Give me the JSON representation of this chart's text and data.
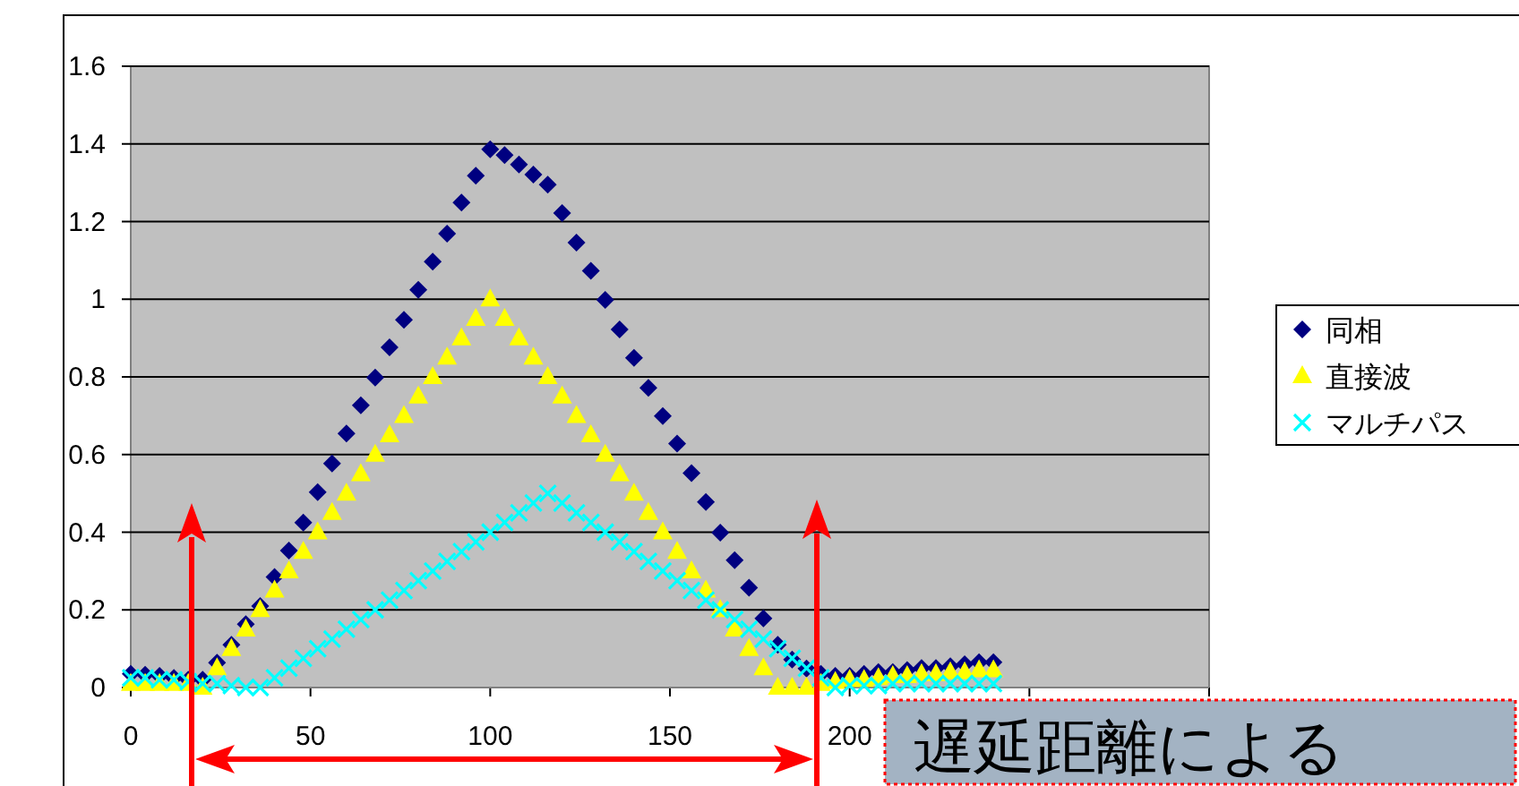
{
  "chart_data": {
    "type": "scatter",
    "x": [
      0,
      4,
      8,
      12,
      16,
      20,
      24,
      28,
      32,
      36,
      40,
      44,
      48,
      52,
      56,
      60,
      64,
      68,
      72,
      76,
      80,
      84,
      88,
      92,
      96,
      100,
      104,
      108,
      112,
      116,
      120,
      124,
      128,
      132,
      136,
      140,
      144,
      148,
      152,
      156,
      160,
      164,
      168,
      172,
      176,
      180,
      184,
      188,
      192,
      196,
      200,
      204,
      208,
      212,
      216,
      220,
      224,
      228,
      232,
      236,
      240
    ],
    "series": [
      {
        "name": "同相",
        "color": "#000080",
        "marker": "diamond",
        "values": [
          0.035,
          0.033,
          0.03,
          0.025,
          0.02,
          0.02,
          0.064,
          0.11,
          0.163,
          0.21,
          0.285,
          0.353,
          0.425,
          0.503,
          0.577,
          0.654,
          0.727,
          0.798,
          0.876,
          0.947,
          1.024,
          1.097,
          1.169,
          1.249,
          1.318,
          1.386,
          1.371,
          1.347,
          1.321,
          1.295,
          1.222,
          1.146,
          1.073,
          0.998,
          0.922,
          0.849,
          0.772,
          0.699,
          0.628,
          0.552,
          0.478,
          0.399,
          0.328,
          0.257,
          0.178,
          0.11,
          0.072,
          0.049,
          0.035,
          0.03,
          0.03,
          0.035,
          0.04,
          0.04,
          0.045,
          0.05,
          0.05,
          0.055,
          0.06,
          0.065,
          0.065
        ]
      },
      {
        "name": "直接波",
        "color": "#ffff00",
        "marker": "triangle",
        "values": [
          0.01,
          0.01,
          0.01,
          0.01,
          0.01,
          0,
          0.05,
          0.1,
          0.15,
          0.2,
          0.25,
          0.3,
          0.35,
          0.4,
          0.45,
          0.5,
          0.55,
          0.6,
          0.65,
          0.7,
          0.75,
          0.8,
          0.85,
          0.9,
          0.95,
          1,
          0.95,
          0.9,
          0.85,
          0.8,
          0.75,
          0.7,
          0.65,
          0.6,
          0.55,
          0.5,
          0.45,
          0.4,
          0.35,
          0.3,
          0.25,
          0.2,
          0.15,
          0.1,
          0.05,
          0,
          0,
          0,
          0.01,
          0.015,
          0.02,
          0.02,
          0.025,
          0.03,
          0.03,
          0.035,
          0.035,
          0.04,
          0.04,
          0.045,
          0.045
        ]
      },
      {
        "name": "マルチパス",
        "color": "#00ffff",
        "marker": "cross",
        "values": [
          0.025,
          0.025,
          0.02,
          0.02,
          0.015,
          0.01,
          0.01,
          0.005,
          0,
          0,
          0.025,
          0.05,
          0.075,
          0.1,
          0.125,
          0.15,
          0.175,
          0.2,
          0.225,
          0.25,
          0.275,
          0.3,
          0.325,
          0.35,
          0.375,
          0.4,
          0.425,
          0.45,
          0.475,
          0.5,
          0.475,
          0.45,
          0.425,
          0.4,
          0.375,
          0.35,
          0.325,
          0.3,
          0.275,
          0.25,
          0.225,
          0.2,
          0.175,
          0.15,
          0.125,
          0.1,
          0.075,
          0.05,
          0.025,
          0,
          0.005,
          0.005,
          0.005,
          0.01,
          0.01,
          0.01,
          0.01,
          0.01,
          0.01,
          0.01,
          0.01
        ]
      }
    ],
    "xlim": [
      0,
      300
    ],
    "xticks": [
      0,
      50,
      100,
      150,
      200,
      {
        "value": 250,
        "label": null
      },
      {
        "value": 300,
        "label": null
      }
    ],
    "ylim": [
      0,
      1.6
    ],
    "yticks": [
      0,
      0.2,
      0.4,
      0.6,
      0.8,
      1,
      1.2,
      1.4,
      1.6
    ],
    "grid": "y",
    "legend": "right",
    "annotations": [
      "遅延距離による"
    ]
  }
}
